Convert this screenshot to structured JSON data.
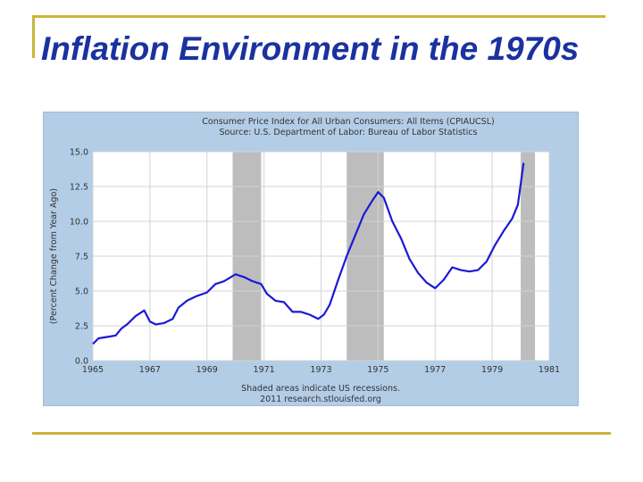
{
  "slide": {
    "title": "Inflation Environment in the 1970s"
  },
  "chart_data": {
    "type": "line",
    "title": "Consumer Price Index for All Urban Consumers: All Items (CPIAUCSL)",
    "subtitle": "Source: U.S. Department of Labor: Bureau of Labor Statistics",
    "ylabel": "(Percent Change from Year Ago)",
    "xlabel": "",
    "xlim": [
      1965,
      1981
    ],
    "ylim": [
      0,
      15
    ],
    "x_ticks": [
      "1965",
      "1967",
      "1969",
      "1971",
      "1973",
      "1975",
      "1977",
      "1979",
      "1981"
    ],
    "y_ticks": [
      "0.0",
      "2.5",
      "5.0",
      "7.5",
      "10.0",
      "12.5",
      "15.0"
    ],
    "grid": true,
    "note": "Shaded areas indicate US recessions.",
    "credit": "2011 research.stlouisfed.org",
    "recessions": [
      [
        1969.9,
        1970.9
      ],
      [
        1973.9,
        1975.2
      ],
      [
        1980.0,
        1980.5
      ]
    ],
    "series": [
      {
        "name": "CPIAUCSL",
        "color": "#1a1ad6",
        "x": [
          1965.0,
          1965.2,
          1965.5,
          1965.8,
          1966.0,
          1966.2,
          1966.5,
          1966.8,
          1967.0,
          1967.2,
          1967.5,
          1967.8,
          1968.0,
          1968.3,
          1968.6,
          1969.0,
          1969.3,
          1969.6,
          1970.0,
          1970.3,
          1970.6,
          1970.9,
          1971.1,
          1971.4,
          1971.7,
          1972.0,
          1972.3,
          1972.6,
          1972.9,
          1973.1,
          1973.3,
          1973.6,
          1973.9,
          1974.2,
          1974.5,
          1974.8,
          1975.0,
          1975.2,
          1975.5,
          1975.8,
          1976.1,
          1976.4,
          1976.7,
          1977.0,
          1977.3,
          1977.6,
          1977.9,
          1978.2,
          1978.5,
          1978.8,
          1979.1,
          1979.4,
          1979.7,
          1979.9,
          1980.1
        ],
        "values": [
          1.2,
          1.6,
          1.7,
          1.8,
          2.3,
          2.6,
          3.2,
          3.6,
          2.8,
          2.6,
          2.7,
          3.0,
          3.8,
          4.3,
          4.6,
          4.9,
          5.5,
          5.7,
          6.2,
          6.0,
          5.7,
          5.5,
          4.8,
          4.3,
          4.2,
          3.5,
          3.5,
          3.3,
          3.0,
          3.3,
          4.0,
          5.8,
          7.5,
          9.0,
          10.5,
          11.5,
          12.1,
          11.7,
          10.0,
          8.8,
          7.3,
          6.3,
          5.6,
          5.2,
          5.8,
          6.7,
          6.5,
          6.4,
          6.5,
          7.1,
          8.3,
          9.3,
          10.2,
          11.2,
          14.2
        ]
      }
    ]
  }
}
